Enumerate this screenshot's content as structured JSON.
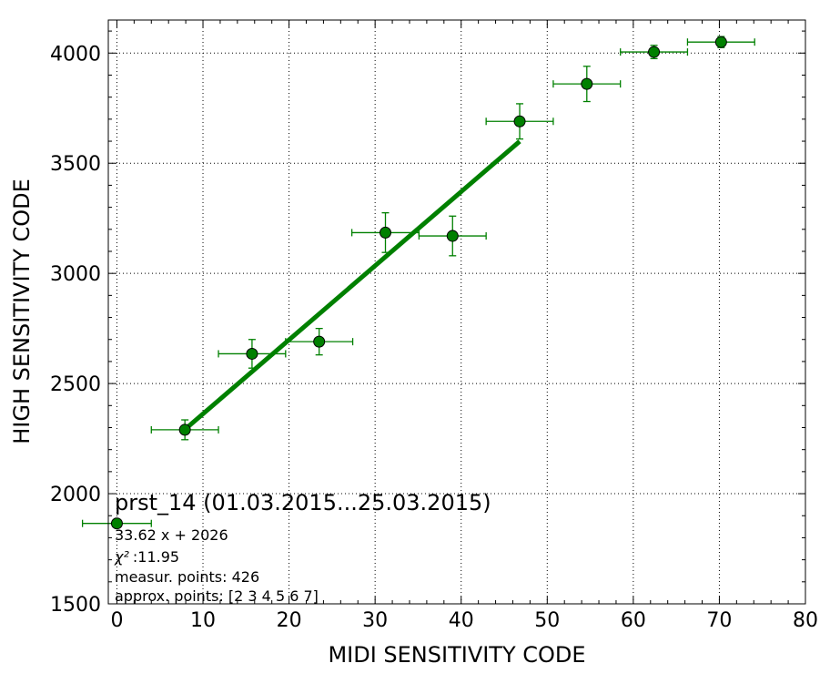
{
  "chart_data": {
    "type": "scatter",
    "xlabel": "MIDI SENSITIVITY CODE",
    "ylabel": "HIGH SENSITIVITY CODE",
    "xlim": [
      -1,
      80
    ],
    "ylim": [
      1500,
      4150
    ],
    "x_ticks": [
      "0",
      "10",
      "20",
      "30",
      "40",
      "50",
      "60",
      "70",
      "80"
    ],
    "y_ticks": [
      "1500",
      "2000",
      "2500",
      "3000",
      "3500",
      "4000"
    ],
    "grid": true,
    "color": "#008000",
    "points": [
      {
        "x": 0.0,
        "y": 1865,
        "xerr": 4.0,
        "yerr": 0
      },
      {
        "x": 7.9,
        "y": 2290,
        "xerr": 3.9,
        "yerr": 45
      },
      {
        "x": 15.7,
        "y": 2635,
        "xerr": 3.9,
        "yerr": 65
      },
      {
        "x": 23.5,
        "y": 2690,
        "xerr": 3.9,
        "yerr": 60
      },
      {
        "x": 31.2,
        "y": 3185,
        "xerr": 3.9,
        "yerr": 90
      },
      {
        "x": 39.0,
        "y": 3170,
        "xerr": 3.9,
        "yerr": 90
      },
      {
        "x": 46.8,
        "y": 3690,
        "xerr": 3.9,
        "yerr": 80
      },
      {
        "x": 54.6,
        "y": 3860,
        "xerr": 3.9,
        "yerr": 80
      },
      {
        "x": 62.4,
        "y": 4005,
        "xerr": 3.9,
        "yerr": 30
      },
      {
        "x": 70.2,
        "y": 4050,
        "xerr": 3.9,
        "yerr": 25
      }
    ],
    "fit_line": {
      "slope": 33.62,
      "intercept": 2026,
      "x_start": 7.9,
      "x_end": 46.8
    },
    "annotation": {
      "title": "prst_14 (01.03.2015...25.03.2015)",
      "equation": "33.62 x + 2026",
      "chi2_symbol": "χ²",
      "chi2_value": ":11.95",
      "measur_points": "measur. points: 426",
      "approx_points": "approx. points: [2 3 4 5 6 7]"
    }
  }
}
